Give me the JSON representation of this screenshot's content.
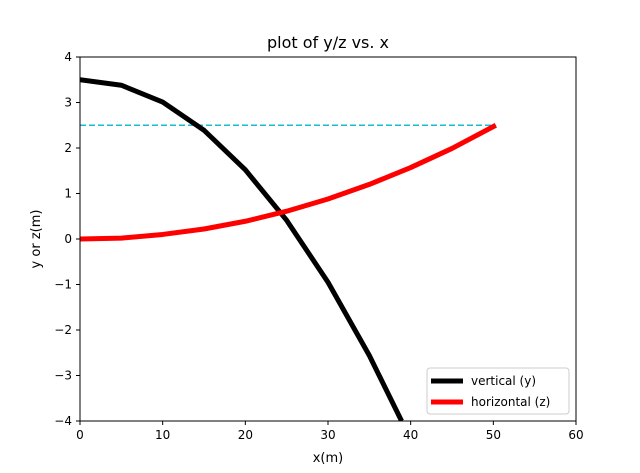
{
  "chart_data": {
    "type": "line",
    "title": "plot of y/z vs. x",
    "xlabel": "x(m)",
    "ylabel": "y or z(m)",
    "xlim": [
      0,
      60
    ],
    "ylim": [
      -4,
      4
    ],
    "xticks": [
      0,
      10,
      20,
      30,
      40,
      50,
      60
    ],
    "yticks": [
      -4,
      -3,
      -2,
      -1,
      0,
      1,
      2,
      3,
      4
    ],
    "xtick_labels": [
      "0",
      "10",
      "20",
      "30",
      "40",
      "50",
      "60"
    ],
    "ytick_labels": [
      "−4",
      "−3",
      "−2",
      "−1",
      "0",
      "1",
      "2",
      "3",
      "4"
    ],
    "grid": false,
    "legend_position": "lower-right",
    "series": [
      {
        "name": "vertical (y)",
        "color": "#000000",
        "x": [
          0,
          5,
          10,
          15,
          20,
          25,
          30,
          35,
          38.9
        ],
        "y": [
          3.5,
          3.38,
          3.01,
          2.39,
          1.52,
          0.41,
          -0.95,
          -2.56,
          -4.0
        ]
      },
      {
        "name": "horizontal (z)",
        "color": "#ff0000",
        "x": [
          0,
          5,
          10,
          15,
          20,
          25,
          30,
          35,
          40,
          45,
          50.3
        ],
        "y": [
          0,
          0.02,
          0.1,
          0.22,
          0.39,
          0.61,
          0.88,
          1.2,
          1.57,
          1.99,
          2.5
        ]
      }
    ],
    "reference_lines": [
      {
        "type": "horizontal",
        "y": 2.5,
        "x_start": 0,
        "x_end": 50.3,
        "color": "#17becf",
        "style": "dashed"
      }
    ]
  }
}
